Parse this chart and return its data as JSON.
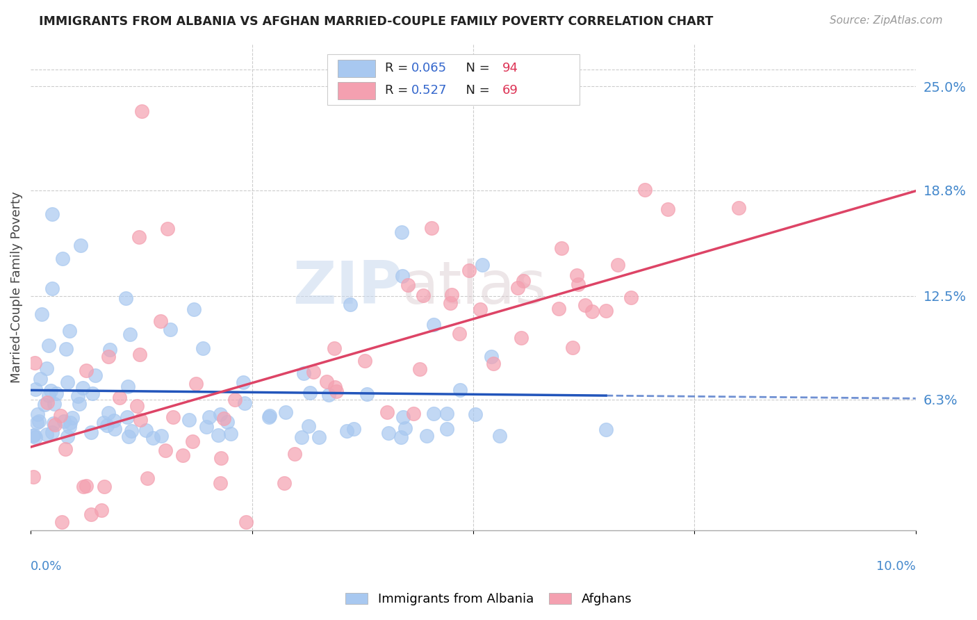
{
  "title": "IMMIGRANTS FROM ALBANIA VS AFGHAN MARRIED-COUPLE FAMILY POVERTY CORRELATION CHART",
  "source": "Source: ZipAtlas.com",
  "ylabel": "Married-Couple Family Poverty",
  "ytick_labels": [
    "25.0%",
    "18.8%",
    "12.5%",
    "6.3%"
  ],
  "ytick_values": [
    0.25,
    0.188,
    0.125,
    0.063
  ],
  "xlim": [
    0.0,
    0.1
  ],
  "ylim": [
    -0.015,
    0.275
  ],
  "albania_color": "#a8c8f0",
  "afghan_color": "#f4a0b0",
  "albania_line_color": "#2255bb",
  "afghan_line_color": "#dd4466",
  "watermark_zip": "ZIP",
  "watermark_atlas": "atlas",
  "albania_R": 0.065,
  "albania_N": 94,
  "afghan_R": 0.527,
  "afghan_N": 69
}
